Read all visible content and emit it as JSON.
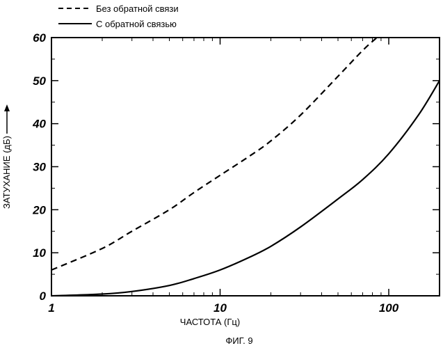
{
  "chart_data": {
    "type": "line",
    "caption": "ФИГ. 9",
    "xlabel": "ЧАСТОТА (Гц)",
    "ylabel": "ЗАТУХАНИЕ (дБ)",
    "x_scale": "log",
    "xlim": [
      1,
      200
    ],
    "ylim": [
      0,
      60
    ],
    "x_ticks": [
      1,
      10,
      100
    ],
    "x_tick_labels": [
      "1",
      "10",
      "100"
    ],
    "y_ticks": [
      0,
      10,
      20,
      30,
      40,
      50,
      60
    ],
    "y_tick_labels": [
      "0",
      "10",
      "20",
      "30",
      "40",
      "50",
      "60"
    ],
    "grid": false,
    "legend_position": "top-left, above plot",
    "series": [
      {
        "name": "Без обратной связи",
        "line_style": "dashed",
        "color": "#000000",
        "x": [
          1,
          2,
          3,
          5,
          7,
          10,
          15,
          20,
          30,
          50,
          70,
          85
        ],
        "y": [
          6,
          11,
          15,
          20,
          24,
          28,
          32.5,
          36,
          42,
          51,
          57,
          60
        ]
      },
      {
        "name": "С обратной связью",
        "line_style": "solid",
        "color": "#000000",
        "x": [
          1,
          2,
          3,
          5,
          7,
          10,
          15,
          20,
          30,
          50,
          70,
          100,
          150,
          200
        ],
        "y": [
          0,
          0.4,
          1,
          2.4,
          4,
          6,
          9,
          11.5,
          16,
          22.5,
          27,
          33,
          42,
          50
        ]
      }
    ]
  }
}
